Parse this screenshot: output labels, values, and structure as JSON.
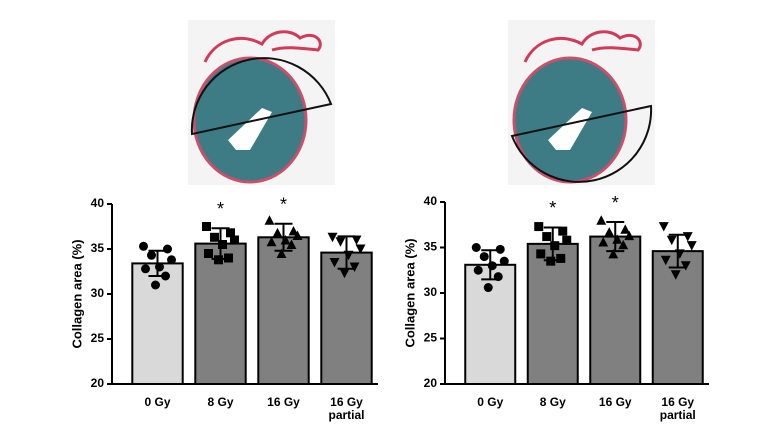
{
  "chart_data": [
    {
      "type": "bar",
      "y_label": "Collagen area (%)",
      "categories": [
        "0 Gy",
        "8 Gy",
        "16 Gy",
        "16 Gy\npartial"
      ],
      "values": [
        33.4,
        35.6,
        36.3,
        34.6
      ],
      "errors": [
        1.4,
        1.7,
        1.5,
        1.8
      ],
      "colors": [
        "#d9d9d9",
        "#808080",
        "#808080",
        "#808080"
      ],
      "point_shapes": [
        "circle",
        "square",
        "triangle",
        "triangle-down"
      ],
      "points": [
        [
          35.3,
          35.0,
          34.3,
          33.8,
          33.0,
          32.8,
          32.0,
          31.0
        ],
        [
          37.5,
          36.8,
          36.3,
          36.0,
          35.5,
          34.5,
          34.0,
          33.8
        ],
        [
          38.2,
          37.0,
          36.8,
          36.5,
          36.0,
          35.8,
          35.5,
          34.5
        ],
        [
          36.3,
          36.0,
          35.8,
          35.0,
          34.3,
          33.5,
          33.0,
          32.3
        ]
      ],
      "markers": [
        null,
        "*",
        "*",
        null
      ],
      "ylim": [
        20,
        40
      ],
      "yticks": [
        20,
        25,
        30,
        35,
        40
      ]
    },
    {
      "type": "bar",
      "y_label": "Collagen area (%)",
      "categories": [
        "0 Gy",
        "8 Gy",
        "16 Gy",
        "16 Gy\npartial"
      ],
      "values": [
        33.1,
        35.4,
        36.2,
        34.6
      ],
      "errors": [
        1.6,
        1.8,
        1.6,
        1.8
      ],
      "colors": [
        "#d9d9d9",
        "#808080",
        "#808080",
        "#808080"
      ],
      "point_shapes": [
        "circle",
        "square",
        "triangle",
        "triangle-down"
      ],
      "points": [
        [
          35.0,
          34.8,
          34.0,
          33.5,
          33.0,
          32.5,
          31.8,
          30.6
        ],
        [
          37.3,
          36.8,
          36.2,
          35.8,
          35.2,
          34.3,
          33.8,
          33.5
        ],
        [
          38.0,
          37.0,
          36.7,
          36.3,
          35.9,
          35.6,
          35.3,
          34.3
        ],
        [
          37.3,
          36.2,
          35.8,
          35.2,
          34.3,
          33.6,
          33.0,
          32.0
        ]
      ],
      "markers": [
        null,
        "*",
        "*",
        null
      ],
      "ylim": [
        20,
        40
      ],
      "yticks": [
        20,
        25,
        30,
        35,
        40
      ]
    }
  ]
}
